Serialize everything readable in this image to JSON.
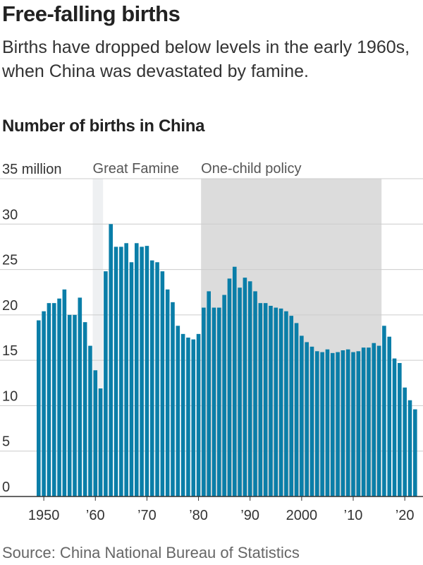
{
  "title": "Free-falling births",
  "subtitle": "Births have dropped below levels in the early 1960s, when China was devastated by famine.",
  "source": "Source: China National Bureau of Statistics",
  "chart_data": {
    "type": "bar",
    "title": "Number of births in China",
    "ylabel": "",
    "xlabel": "",
    "ylim": [
      0,
      35
    ],
    "xlim": [
      1949,
      2022
    ],
    "y_ticks": [
      0,
      5,
      10,
      15,
      20,
      25,
      30,
      35
    ],
    "y_tick_labels": [
      "0",
      "5",
      "10",
      "15",
      "20",
      "25",
      "30",
      "35 million"
    ],
    "x_ticks": [
      1950,
      1960,
      1970,
      1980,
      1990,
      2000,
      2010,
      2020
    ],
    "x_tick_labels": [
      "1950",
      "’60",
      "’70",
      "’80",
      "’90",
      "2000",
      "’10",
      "’20"
    ],
    "grid": true,
    "bar_color": "#0a7ea8",
    "shaded_periods": [
      {
        "label": "Great Famine",
        "start": 1959,
        "end": 1961,
        "color": "#eef0f2"
      },
      {
        "label": "One-child policy",
        "start": 1980,
        "end": 2015,
        "color": "#dcdcdc"
      }
    ],
    "years": [
      1949,
      1950,
      1951,
      1952,
      1953,
      1954,
      1955,
      1956,
      1957,
      1958,
      1959,
      1960,
      1961,
      1962,
      1963,
      1964,
      1965,
      1966,
      1967,
      1968,
      1969,
      1970,
      1971,
      1972,
      1973,
      1974,
      1975,
      1976,
      1977,
      1978,
      1979,
      1980,
      1981,
      1982,
      1983,
      1984,
      1985,
      1986,
      1987,
      1988,
      1989,
      1990,
      1991,
      1992,
      1993,
      1994,
      1995,
      1996,
      1997,
      1998,
      1999,
      2000,
      2001,
      2002,
      2003,
      2004,
      2005,
      2006,
      2007,
      2008,
      2009,
      2010,
      2011,
      2012,
      2013,
      2014,
      2015,
      2016,
      2017,
      2018,
      2019,
      2020,
      2021,
      2022
    ],
    "values": [
      19.4,
      20.4,
      21.3,
      21.3,
      21.8,
      22.8,
      20.0,
      20.0,
      21.9,
      19.2,
      16.6,
      13.9,
      11.9,
      24.8,
      30.0,
      27.5,
      27.5,
      27.9,
      25.8,
      27.9,
      27.5,
      27.6,
      26.0,
      25.8,
      24.8,
      22.8,
      21.4,
      18.8,
      17.9,
      17.5,
      17.3,
      17.9,
      20.8,
      22.6,
      20.8,
      20.8,
      22.2,
      24.0,
      25.3,
      23.0,
      24.1,
      23.7,
      22.6,
      21.3,
      21.3,
      21.0,
      20.8,
      20.7,
      20.4,
      19.9,
      19.1,
      17.7,
      17.0,
      16.5,
      16.0,
      15.9,
      16.2,
      15.8,
      15.9,
      16.1,
      16.2,
      15.9,
      16.0,
      16.4,
      16.4,
      16.9,
      16.6,
      18.8,
      17.6,
      15.2,
      14.7,
      12.0,
      10.6,
      9.6
    ]
  }
}
